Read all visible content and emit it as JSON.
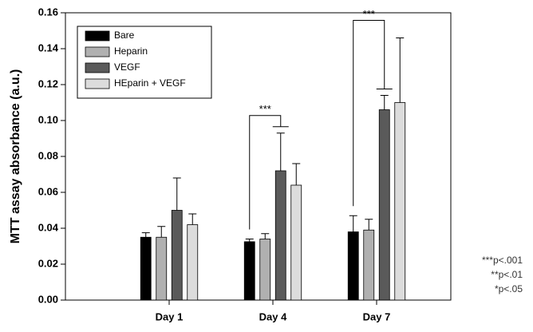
{
  "chart_data": {
    "type": "bar",
    "y_label": "MTT assay absorbance (a.u.)",
    "categories": [
      "Day 1",
      "Day 4",
      "Day 7"
    ],
    "series": [
      {
        "name": "Bare",
        "color": "#000000",
        "values": [
          0.035,
          0.0325,
          0.038
        ],
        "errors": [
          0.0025,
          0.0015,
          0.009
        ]
      },
      {
        "name": "Heparin",
        "color": "#b0b0b0",
        "values": [
          0.035,
          0.034,
          0.039
        ],
        "errors": [
          0.006,
          0.003,
          0.006
        ]
      },
      {
        "name": "VEGF",
        "color": "#5a5a5a",
        "values": [
          0.05,
          0.072,
          0.106
        ],
        "errors": [
          0.018,
          0.021,
          0.008
        ]
      },
      {
        "name": "HEparin + VEGF",
        "color": "#dcdcdc",
        "values": [
          0.042,
          0.064,
          0.11
        ],
        "errors": [
          0.006,
          0.012,
          0.036
        ]
      }
    ],
    "ylim": [
      0,
      0.16
    ],
    "yticks": [
      {
        "value": 0,
        "label": "0.00"
      },
      {
        "value": 0.02,
        "label": "0.02"
      },
      {
        "value": 0.04,
        "label": "0.04"
      },
      {
        "value": 0.06,
        "label": "0.06"
      },
      {
        "value": 0.08,
        "label": "0.08"
      },
      {
        "value": 0.1,
        "label": "0.10"
      },
      {
        "value": 0.12,
        "label": "0.12"
      },
      {
        "value": 0.14,
        "label": "0.14"
      },
      {
        "value": 0.16,
        "label": "0.16"
      }
    ],
    "significance": [
      {
        "category": 1,
        "from": 0,
        "to": 2,
        "label": "***"
      },
      {
        "category": 2,
        "from": 0,
        "to": 2,
        "label": "***"
      }
    ],
    "footnotes": [
      "***p<.001",
      "**p<.01",
      "*p<.05"
    ],
    "legend": "upper left"
  }
}
